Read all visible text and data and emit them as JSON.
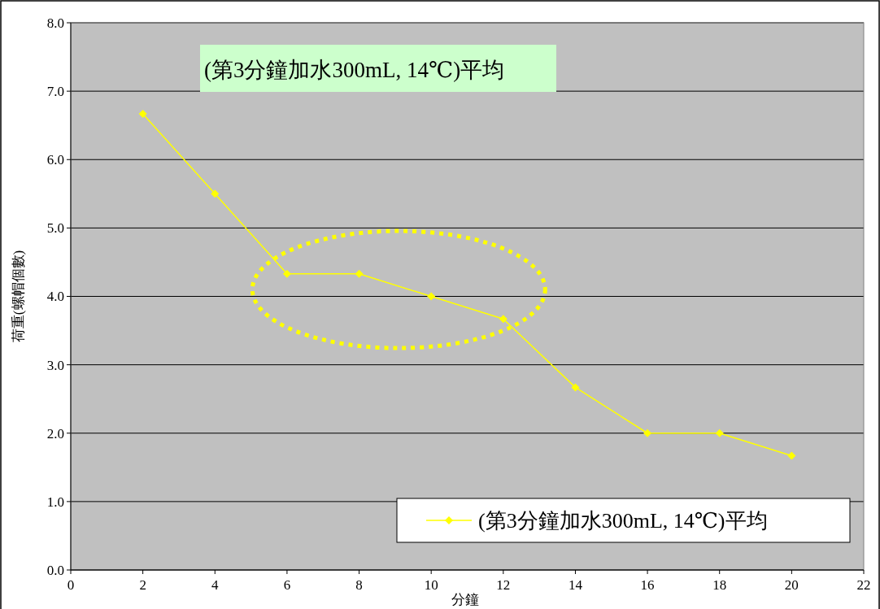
{
  "chart_data": {
    "type": "line",
    "title": "(第3分鐘加水300mL, 14℃)平均",
    "xlabel": "分鐘",
    "ylabel": "荷重(螺帽個數)",
    "x": [
      2,
      4,
      6,
      8,
      10,
      12,
      14,
      16,
      18,
      20
    ],
    "series": [
      {
        "name": "(第3分鐘加水300mL, 14℃)平均",
        "color": "#ffff00",
        "values": [
          6.67,
          5.5,
          4.33,
          4.33,
          4.0,
          3.67,
          2.67,
          2.0,
          2.0,
          1.67
        ]
      }
    ],
    "xlim": [
      0,
      22
    ],
    "xticks": [
      0,
      2,
      4,
      6,
      8,
      10,
      12,
      14,
      16,
      18,
      20,
      22
    ],
    "ylim": [
      0,
      8
    ],
    "yticks": [
      {
        "value": 0,
        "label": "0.0"
      },
      {
        "value": 1,
        "label": "1.0"
      },
      {
        "value": 2,
        "label": "2.0"
      },
      {
        "value": 3,
        "label": "3.0"
      },
      {
        "value": 4,
        "label": "4.0"
      },
      {
        "value": 5,
        "label": "5.0"
      },
      {
        "value": 6,
        "label": "6.0"
      },
      {
        "value": 7,
        "label": "7.0"
      },
      {
        "value": 8,
        "label": "8.0"
      }
    ],
    "grid": "y",
    "legend": "bottom right",
    "marker": "diamond",
    "line_style": "solid"
  }
}
